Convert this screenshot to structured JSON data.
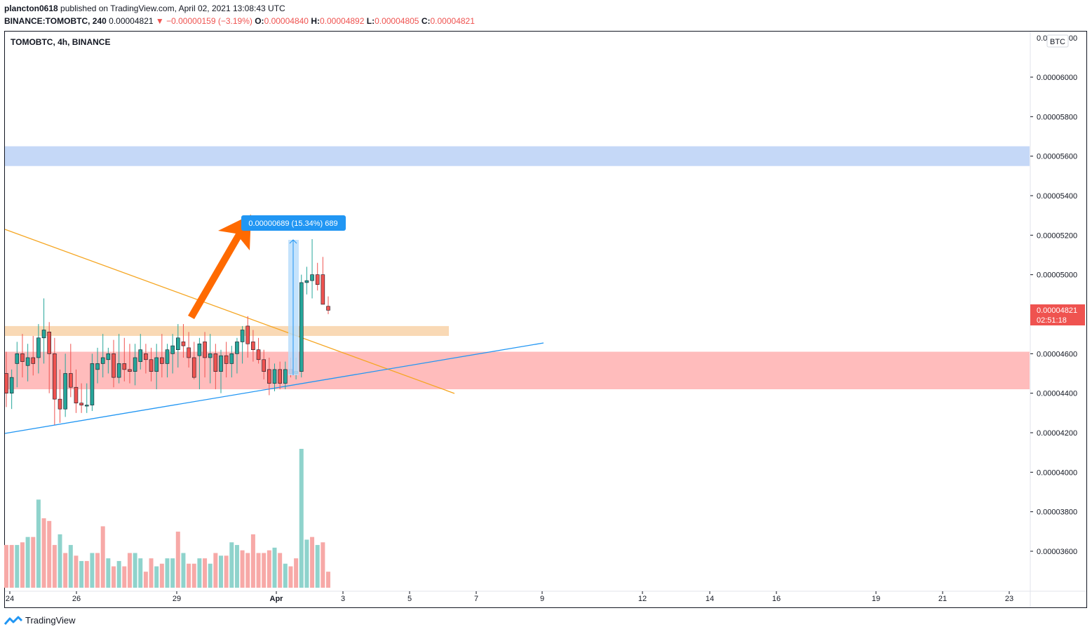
{
  "header": {
    "author": "plancton0618",
    "published_text": "published on TradingView.com, April 02, 2021 13:08:43 UTC",
    "symbol_full": "BINANCE:TOMOBTC, 240",
    "last": "0.00004821",
    "change": "▼ −0.00000159 (−3.19%)",
    "o_label": "O:",
    "o_value": "0.00004840",
    "h_label": "H:",
    "h_value": "0.00004892",
    "l_label": "L:",
    "l_value": "0.00004805",
    "c_label": "C:",
    "c_value": "0.00004821"
  },
  "chart_title": "TOMOBTC, 4h, BINANCE",
  "currency_badge": "BTC",
  "price_tag": {
    "price": "0.00004821",
    "countdown": "02:51:18"
  },
  "measure_label": "0.00000689 (15.34%) 689",
  "footer": {
    "brand": "TradingView"
  },
  "colors": {
    "up": "#26a69a",
    "down": "#ef5350",
    "zone_blue": "#c5d8f7",
    "zone_orange": "#f9d9b5",
    "zone_red": "#ffbcbc",
    "trend_orange": "#f5a623",
    "trend_blue": "#2196f3",
    "arrow": "#ff6a00",
    "measure": "#2196f3"
  },
  "chart_data": {
    "type": "candlestick",
    "symbol": "TOMOBTC",
    "interval": "4h",
    "exchange": "BINANCE",
    "y_ticks": [
      "0.00006000",
      "0.00005800",
      "0.00005600",
      "0.00005400",
      "0.00005200",
      "0.00005000",
      "0.00004600",
      "0.00004400",
      "0.00004200",
      "0.00004000",
      "0.00003800",
      "0.00003600"
    ],
    "y_range": [
      3.4e-05,
      6.23e-05
    ],
    "x_ticks": [
      "24",
      "26",
      "29",
      "Apr",
      "3",
      "5",
      "7",
      "9",
      "12",
      "14",
      "16",
      "19",
      "21",
      "23"
    ],
    "candles": [
      [
        4.5e-05,
        4.61e-05,
        4.33e-05,
        4.4e-05
      ],
      [
        4.4e-05,
        4.52e-05,
        4.32e-05,
        4.48e-05
      ],
      [
        4.55e-05,
        4.66e-05,
        4.43e-05,
        4.6e-05
      ],
      [
        4.6e-05,
        4.7e-05,
        4.48e-05,
        4.56e-05
      ],
      [
        4.54e-05,
        4.65e-05,
        4.46e-05,
        4.58e-05
      ],
      [
        4.58e-05,
        4.69e-05,
        4.49e-05,
        4.55e-05
      ],
      [
        4.58e-05,
        4.75e-05,
        4.5e-05,
        4.68e-05
      ],
      [
        4.68e-05,
        4.88e-05,
        4.55e-05,
        4.72e-05
      ],
      [
        4.71e-05,
        4.76e-05,
        4.4e-05,
        4.6e-05
      ],
      [
        4.6e-05,
        4.68e-05,
        4.24e-05,
        4.37e-05
      ],
      [
        4.37e-05,
        4.52e-05,
        4.25e-05,
        4.32e-05
      ],
      [
        4.32e-05,
        4.6e-05,
        4.28e-05,
        4.5e-05
      ],
      [
        4.5e-05,
        4.65e-05,
        4.38e-05,
        4.43e-05
      ],
      [
        4.43e-05,
        4.52e-05,
        4.3e-05,
        4.35e-05
      ],
      [
        4.35e-05,
        4.45e-05,
        4.3e-05,
        4.34e-05
      ],
      [
        4.34e-05,
        4.45e-05,
        4.3e-05,
        4.34e-05
      ],
      [
        4.34e-05,
        4.6e-05,
        4.31e-05,
        4.55e-05
      ],
      [
        4.52e-05,
        4.63e-05,
        4.45e-05,
        4.55e-05
      ],
      [
        4.55e-05,
        4.7e-05,
        4.48e-05,
        4.58e-05
      ],
      [
        4.57e-05,
        4.63e-05,
        4.5e-05,
        4.6e-05
      ],
      [
        4.6e-05,
        4.67e-05,
        4.43e-05,
        4.48e-05
      ],
      [
        4.48e-05,
        4.7e-05,
        4.45e-05,
        4.55e-05
      ],
      [
        4.55e-05,
        4.68e-05,
        4.46e-05,
        4.52e-05
      ],
      [
        4.52e-05,
        4.65e-05,
        4.45e-05,
        4.51e-05
      ],
      [
        4.51e-05,
        4.65e-05,
        4.44e-05,
        4.58e-05
      ],
      [
        4.56e-05,
        4.7e-05,
        4.52e-05,
        4.62e-05
      ],
      [
        4.6e-05,
        4.65e-05,
        4.5e-05,
        4.57e-05
      ],
      [
        4.57e-05,
        4.63e-05,
        4.46e-05,
        4.51e-05
      ],
      [
        4.51e-05,
        4.65e-05,
        4.42e-05,
        4.58e-05
      ],
      [
        4.58e-05,
        4.7e-05,
        4.48e-05,
        4.55e-05
      ],
      [
        4.55e-05,
        4.65e-05,
        4.48e-05,
        4.62e-05
      ],
      [
        4.6e-05,
        4.7e-05,
        4.5e-05,
        4.64e-05
      ],
      [
        4.62e-05,
        4.75e-05,
        4.53e-05,
        4.68e-05
      ],
      [
        4.66e-05,
        4.75e-05,
        4.58e-05,
        4.64e-05
      ],
      [
        4.63e-05,
        4.71e-05,
        4.53e-05,
        4.58e-05
      ],
      [
        4.58e-05,
        4.66e-05,
        4.47e-05,
        4.48e-05
      ],
      [
        4.59e-05,
        4.68e-05,
        4.42e-05,
        4.65e-05
      ],
      [
        4.66e-05,
        4.71e-05,
        4.48e-05,
        4.58e-05
      ],
      [
        4.58e-05,
        4.7e-05,
        4.45e-05,
        4.6e-05
      ],
      [
        4.6e-05,
        4.65e-05,
        4.42e-05,
        4.51e-05
      ],
      [
        4.51e-05,
        4.62e-05,
        4.4e-05,
        4.59e-05
      ],
      [
        4.59e-05,
        4.66e-05,
        4.48e-05,
        4.55e-05
      ],
      [
        4.55e-05,
        4.64e-05,
        4.48e-05,
        4.6e-05
      ],
      [
        4.6e-05,
        4.68e-05,
        4.5e-05,
        4.66e-05
      ],
      [
        4.66e-05,
        4.74e-05,
        4.55e-05,
        4.72e-05
      ],
      [
        4.74e-05,
        4.79e-05,
        4.58e-05,
        4.65e-05
      ],
      [
        4.66e-05,
        4.72e-05,
        4.56e-05,
        4.62e-05
      ],
      [
        4.62e-05,
        4.68e-05,
        4.55e-05,
        4.57e-05
      ],
      [
        4.57e-05,
        4.62e-05,
        4.47e-05,
        4.51e-05
      ],
      [
        4.52e-05,
        4.58e-05,
        4.39e-05,
        4.45e-05
      ],
      [
        4.45e-05,
        4.55e-05,
        4.41e-05,
        4.52e-05
      ],
      [
        4.52e-05,
        4.56e-05,
        4.42e-05,
        4.45e-05
      ],
      [
        4.45e-05,
        4.56e-05,
        4.42e-05,
        4.52e-05
      ],
      [
        4.52e-05,
        4.58e-05,
        4.48e-05,
        4.5e-05
      ],
      [
        4.5e-05,
        4.58e-05,
        4.47e-05,
        4.51e-05
      ],
      [
        4.51e-05,
        5e-05,
        4.48e-05,
        4.96e-05
      ],
      [
        4.96e-05,
        5.04e-05,
        4.9e-05,
        4.97e-05
      ],
      [
        4.97e-05,
        5.18e-05,
        4.88e-05,
        5e-05
      ],
      [
        5e-05,
        5.06e-05,
        4.92e-05,
        4.95e-05
      ],
      [
        5e-05,
        5.09e-05,
        4.85e-05,
        4.85e-05
      ],
      [
        4.84e-05,
        4.89e-05,
        4.8e-05,
        4.82e-05
      ]
    ],
    "volume": [
      16,
      16,
      16,
      17,
      19,
      19,
      33,
      26,
      25,
      16,
      20,
      13,
      16,
      12,
      10,
      10,
      13,
      13,
      23,
      11,
      8,
      10,
      8,
      13,
      13,
      11,
      6,
      11,
      8,
      9,
      11,
      11,
      21,
      13,
      9,
      9,
      11,
      11,
      9,
      13,
      12,
      12,
      17,
      16,
      14,
      13,
      20,
      13,
      13,
      14,
      15,
      13,
      9,
      8,
      11,
      52,
      18,
      19,
      16,
      17,
      6
    ],
    "volume_colors": [
      "d",
      "d",
      "u",
      "d",
      "u",
      "d",
      "u",
      "d",
      "d",
      "d",
      "u",
      "d",
      "u",
      "d",
      "u",
      "d",
      "u",
      "d",
      "d",
      "u",
      "d",
      "u",
      "d",
      "d",
      "u",
      "u",
      "d",
      "d",
      "u",
      "d",
      "u",
      "u",
      "d",
      "u",
      "d",
      "d",
      "u",
      "d",
      "u",
      "d",
      "u",
      "d",
      "u",
      "u",
      "d",
      "d",
      "d",
      "d",
      "d",
      "d",
      "u",
      "d",
      "u",
      "d",
      "d",
      "u",
      "u",
      "d",
      "u",
      "d",
      "d"
    ],
    "zones": [
      {
        "name": "resistance",
        "from": 5.55e-05,
        "to": 5.65e-05,
        "color": "blue"
      },
      {
        "name": "breakout",
        "from": 4.69e-05,
        "to": 4.74e-05,
        "color": "orange"
      },
      {
        "name": "support",
        "from": 4.42e-05,
        "to": 4.61e-05,
        "color": "red"
      }
    ]
  }
}
